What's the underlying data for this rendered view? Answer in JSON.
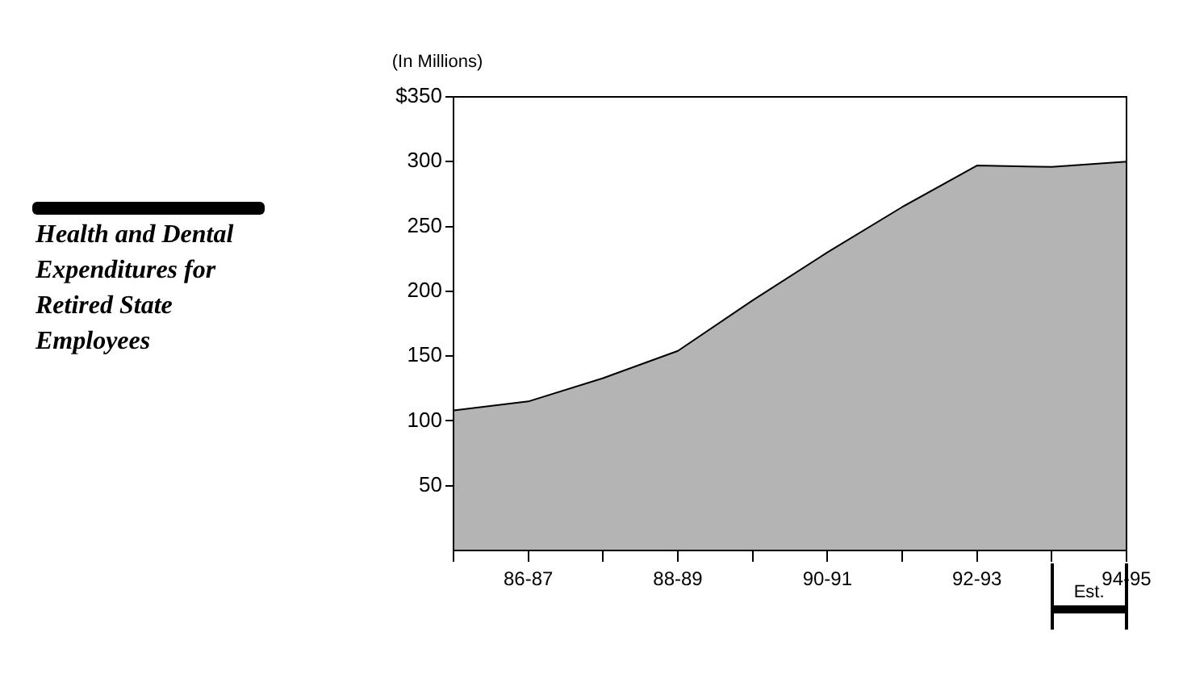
{
  "chart_data": {
    "type": "area",
    "title": "Health and Dental Expenditures for Retired State Employees",
    "ylabel": "(In Millions)",
    "categories": [
      null,
      "86-87",
      null,
      "88-89",
      null,
      "90-91",
      null,
      "92-93",
      null,
      "94-95"
    ],
    "values": [
      108,
      115,
      133,
      154,
      193,
      230,
      265,
      297,
      296,
      300
    ],
    "color": "#b4b4b4",
    "ylim": [
      0,
      350
    ],
    "yticks": [
      50,
      100,
      150,
      200,
      250,
      300,
      {
        "value": 350,
        "label": "$350"
      }
    ],
    "annotations": [
      "Est."
    ],
    "grid": false,
    "legend": false,
    "marker": "none",
    "line_style": "solid"
  }
}
